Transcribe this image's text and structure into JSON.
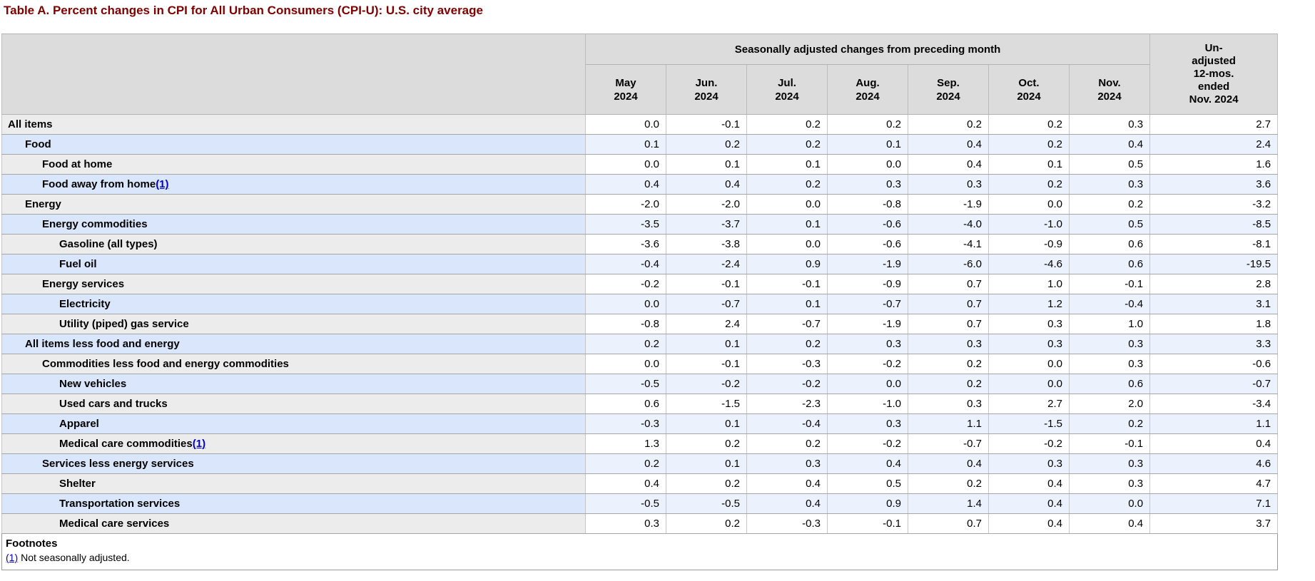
{
  "title": "Table A. Percent changes in CPI for All Urban Consumers (CPI-U): U.S. city average",
  "colors": {
    "title_maroon": "#800000",
    "header_gray": "#dcdcdc",
    "row_gray_label": "#ececec",
    "row_white": "#ffffff",
    "row_blue_label": "#d9e6fb",
    "row_blue_value": "#ecf2fd",
    "link_blue": "#0000cc",
    "border_gray": "#a6a6a6"
  },
  "table": {
    "group_header": "Seasonally adjusted changes from preceding month",
    "unadjusted_header_lines": [
      "Un-",
      "adjusted",
      "12-mos.",
      "ended",
      "Nov. 2024"
    ],
    "month_columns": [
      {
        "month": "May",
        "year": "2024"
      },
      {
        "month": "Jun.",
        "year": "2024"
      },
      {
        "month": "Jul.",
        "year": "2024"
      },
      {
        "month": "Aug.",
        "year": "2024"
      },
      {
        "month": "Sep.",
        "year": "2024"
      },
      {
        "month": "Oct.",
        "year": "2024"
      },
      {
        "month": "Nov.",
        "year": "2024"
      }
    ],
    "rows": [
      {
        "label": "All items",
        "indent": 0,
        "footnote_marker": null,
        "values": [
          "0.0",
          "-0.1",
          "0.2",
          "0.2",
          "0.2",
          "0.2",
          "0.3"
        ],
        "yoy": "2.7"
      },
      {
        "label": "Food",
        "indent": 1,
        "footnote_marker": null,
        "values": [
          "0.1",
          "0.2",
          "0.2",
          "0.1",
          "0.4",
          "0.2",
          "0.4"
        ],
        "yoy": "2.4"
      },
      {
        "label": "Food at home",
        "indent": 2,
        "footnote_marker": null,
        "values": [
          "0.0",
          "0.1",
          "0.1",
          "0.0",
          "0.4",
          "0.1",
          "0.5"
        ],
        "yoy": "1.6"
      },
      {
        "label": "Food away from home",
        "indent": 2,
        "footnote_marker": "(1)",
        "values": [
          "0.4",
          "0.4",
          "0.2",
          "0.3",
          "0.3",
          "0.2",
          "0.3"
        ],
        "yoy": "3.6"
      },
      {
        "label": "Energy",
        "indent": 1,
        "footnote_marker": null,
        "values": [
          "-2.0",
          "-2.0",
          "0.0",
          "-0.8",
          "-1.9",
          "0.0",
          "0.2"
        ],
        "yoy": "-3.2"
      },
      {
        "label": "Energy commodities",
        "indent": 2,
        "footnote_marker": null,
        "values": [
          "-3.5",
          "-3.7",
          "0.1",
          "-0.6",
          "-4.0",
          "-1.0",
          "0.5"
        ],
        "yoy": "-8.5"
      },
      {
        "label": "Gasoline (all types)",
        "indent": 3,
        "footnote_marker": null,
        "values": [
          "-3.6",
          "-3.8",
          "0.0",
          "-0.6",
          "-4.1",
          "-0.9",
          "0.6"
        ],
        "yoy": "-8.1"
      },
      {
        "label": "Fuel oil",
        "indent": 3,
        "footnote_marker": null,
        "values": [
          "-0.4",
          "-2.4",
          "0.9",
          "-1.9",
          "-6.0",
          "-4.6",
          "0.6"
        ],
        "yoy": "-19.5"
      },
      {
        "label": "Energy services",
        "indent": 2,
        "footnote_marker": null,
        "values": [
          "-0.2",
          "-0.1",
          "-0.1",
          "-0.9",
          "0.7",
          "1.0",
          "-0.1"
        ],
        "yoy": "2.8"
      },
      {
        "label": "Electricity",
        "indent": 3,
        "footnote_marker": null,
        "values": [
          "0.0",
          "-0.7",
          "0.1",
          "-0.7",
          "0.7",
          "1.2",
          "-0.4"
        ],
        "yoy": "3.1"
      },
      {
        "label": "Utility (piped) gas service",
        "indent": 3,
        "footnote_marker": null,
        "values": [
          "-0.8",
          "2.4",
          "-0.7",
          "-1.9",
          "0.7",
          "0.3",
          "1.0"
        ],
        "yoy": "1.8"
      },
      {
        "label": "All items less food and energy",
        "indent": 1,
        "footnote_marker": null,
        "values": [
          "0.2",
          "0.1",
          "0.2",
          "0.3",
          "0.3",
          "0.3",
          "0.3"
        ],
        "yoy": "3.3"
      },
      {
        "label": "Commodities less food and energy commodities",
        "indent": 2,
        "footnote_marker": null,
        "values": [
          "0.0",
          "-0.1",
          "-0.3",
          "-0.2",
          "0.2",
          "0.0",
          "0.3"
        ],
        "yoy": "-0.6"
      },
      {
        "label": "New vehicles",
        "indent": 3,
        "footnote_marker": null,
        "values": [
          "-0.5",
          "-0.2",
          "-0.2",
          "0.0",
          "0.2",
          "0.0",
          "0.6"
        ],
        "yoy": "-0.7"
      },
      {
        "label": "Used cars and trucks",
        "indent": 3,
        "footnote_marker": null,
        "values": [
          "0.6",
          "-1.5",
          "-2.3",
          "-1.0",
          "0.3",
          "2.7",
          "2.0"
        ],
        "yoy": "-3.4"
      },
      {
        "label": "Apparel",
        "indent": 3,
        "footnote_marker": null,
        "values": [
          "-0.3",
          "0.1",
          "-0.4",
          "0.3",
          "1.1",
          "-1.5",
          "0.2"
        ],
        "yoy": "1.1"
      },
      {
        "label": "Medical care commodities",
        "indent": 3,
        "footnote_marker": "(1)",
        "values": [
          "1.3",
          "0.2",
          "0.2",
          "-0.2",
          "-0.7",
          "-0.2",
          "-0.1"
        ],
        "yoy": "0.4"
      },
      {
        "label": "Services less energy services",
        "indent": 2,
        "footnote_marker": null,
        "values": [
          "0.2",
          "0.1",
          "0.3",
          "0.4",
          "0.4",
          "0.3",
          "0.3"
        ],
        "yoy": "4.6"
      },
      {
        "label": "Shelter",
        "indent": 3,
        "footnote_marker": null,
        "values": [
          "0.4",
          "0.2",
          "0.4",
          "0.5",
          "0.2",
          "0.4",
          "0.3"
        ],
        "yoy": "4.7"
      },
      {
        "label": "Transportation services",
        "indent": 3,
        "footnote_marker": null,
        "values": [
          "-0.5",
          "-0.5",
          "0.4",
          "0.9",
          "1.4",
          "0.4",
          "0.0"
        ],
        "yoy": "7.1"
      },
      {
        "label": "Medical care services",
        "indent": 3,
        "footnote_marker": null,
        "values": [
          "0.3",
          "0.2",
          "-0.3",
          "-0.1",
          "0.7",
          "0.4",
          "0.4"
        ],
        "yoy": "3.7"
      }
    ]
  },
  "footnotes": {
    "heading": "Footnotes",
    "items": [
      {
        "marker": "(1)",
        "text": "Not seasonally adjusted."
      }
    ]
  }
}
